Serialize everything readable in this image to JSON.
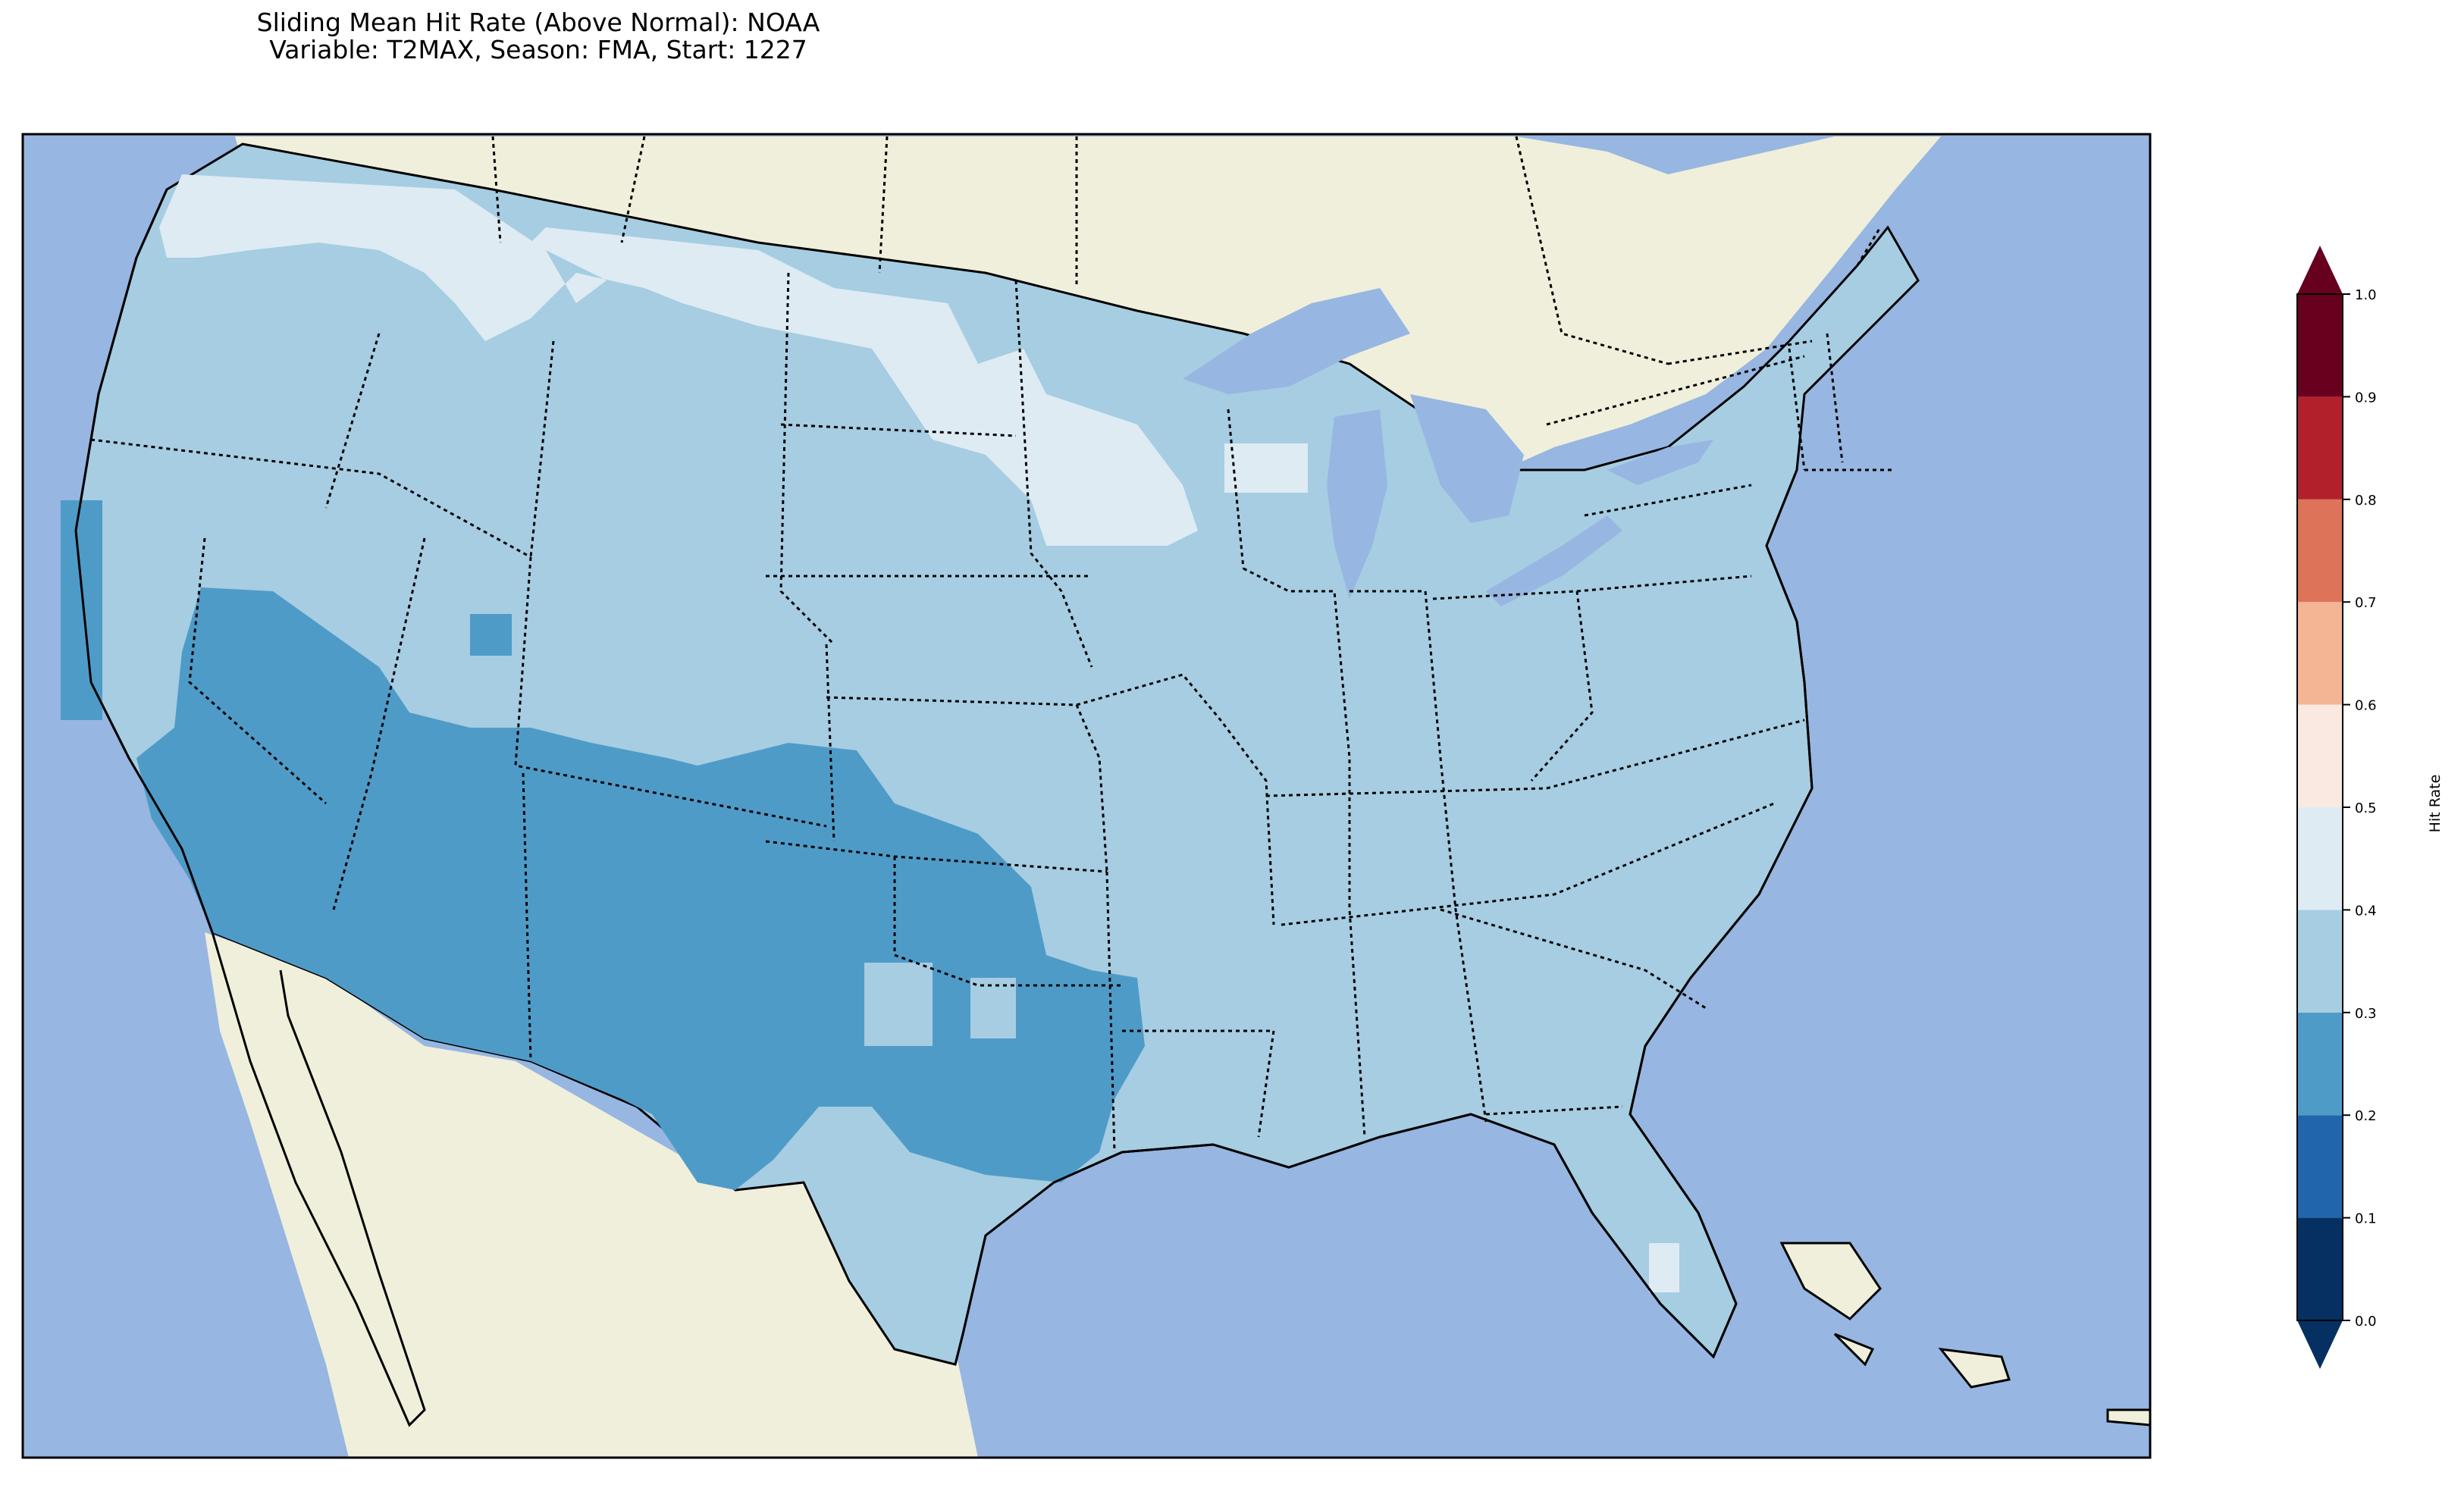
{
  "title": {
    "line1": "Sliding Mean Hit Rate (Above Normal): NOAA",
    "line2": "Variable: T2MAX, Season: FMA, Start: 1227"
  },
  "colors": {
    "ocean": "#97b6e1",
    "land": "#efefdb",
    "border": "#000000"
  },
  "colorbar": {
    "label": "Hit Rate",
    "ticks": [
      "0.0",
      "0.1",
      "0.2",
      "0.3",
      "0.4",
      "0.5",
      "0.6",
      "0.7",
      "0.8",
      "0.9",
      "1.0"
    ],
    "bins": [
      {
        "range": [
          0.0,
          0.1
        ],
        "color": "#053061"
      },
      {
        "range": [
          0.1,
          0.2
        ],
        "color": "#2166ac"
      },
      {
        "range": [
          0.2,
          0.3
        ],
        "color": "#4f9bc8"
      },
      {
        "range": [
          0.3,
          0.4
        ],
        "color": "#a6cde2"
      },
      {
        "range": [
          0.4,
          0.5
        ],
        "color": "#deebf3"
      },
      {
        "range": [
          0.5,
          0.6
        ],
        "color": "#f9e9e0"
      },
      {
        "range": [
          0.6,
          0.7
        ],
        "color": "#f4b595"
      },
      {
        "range": [
          0.7,
          0.8
        ],
        "color": "#dd7358"
      },
      {
        "range": [
          0.8,
          0.9
        ],
        "color": "#b2202c"
      },
      {
        "range": [
          0.9,
          1.0
        ],
        "color": "#67001f"
      }
    ],
    "under_color": "#053061",
    "over_color": "#67001f"
  },
  "map_regions": [
    {
      "name": "background-0.3-0.4",
      "value_bin": "0.3-0.4"
    },
    {
      "name": "southwest-0.2-0.3",
      "value_bin": "0.2-0.3"
    },
    {
      "name": "northern-tier-0.4-0.5",
      "value_bin": "0.4-0.5"
    }
  ]
}
